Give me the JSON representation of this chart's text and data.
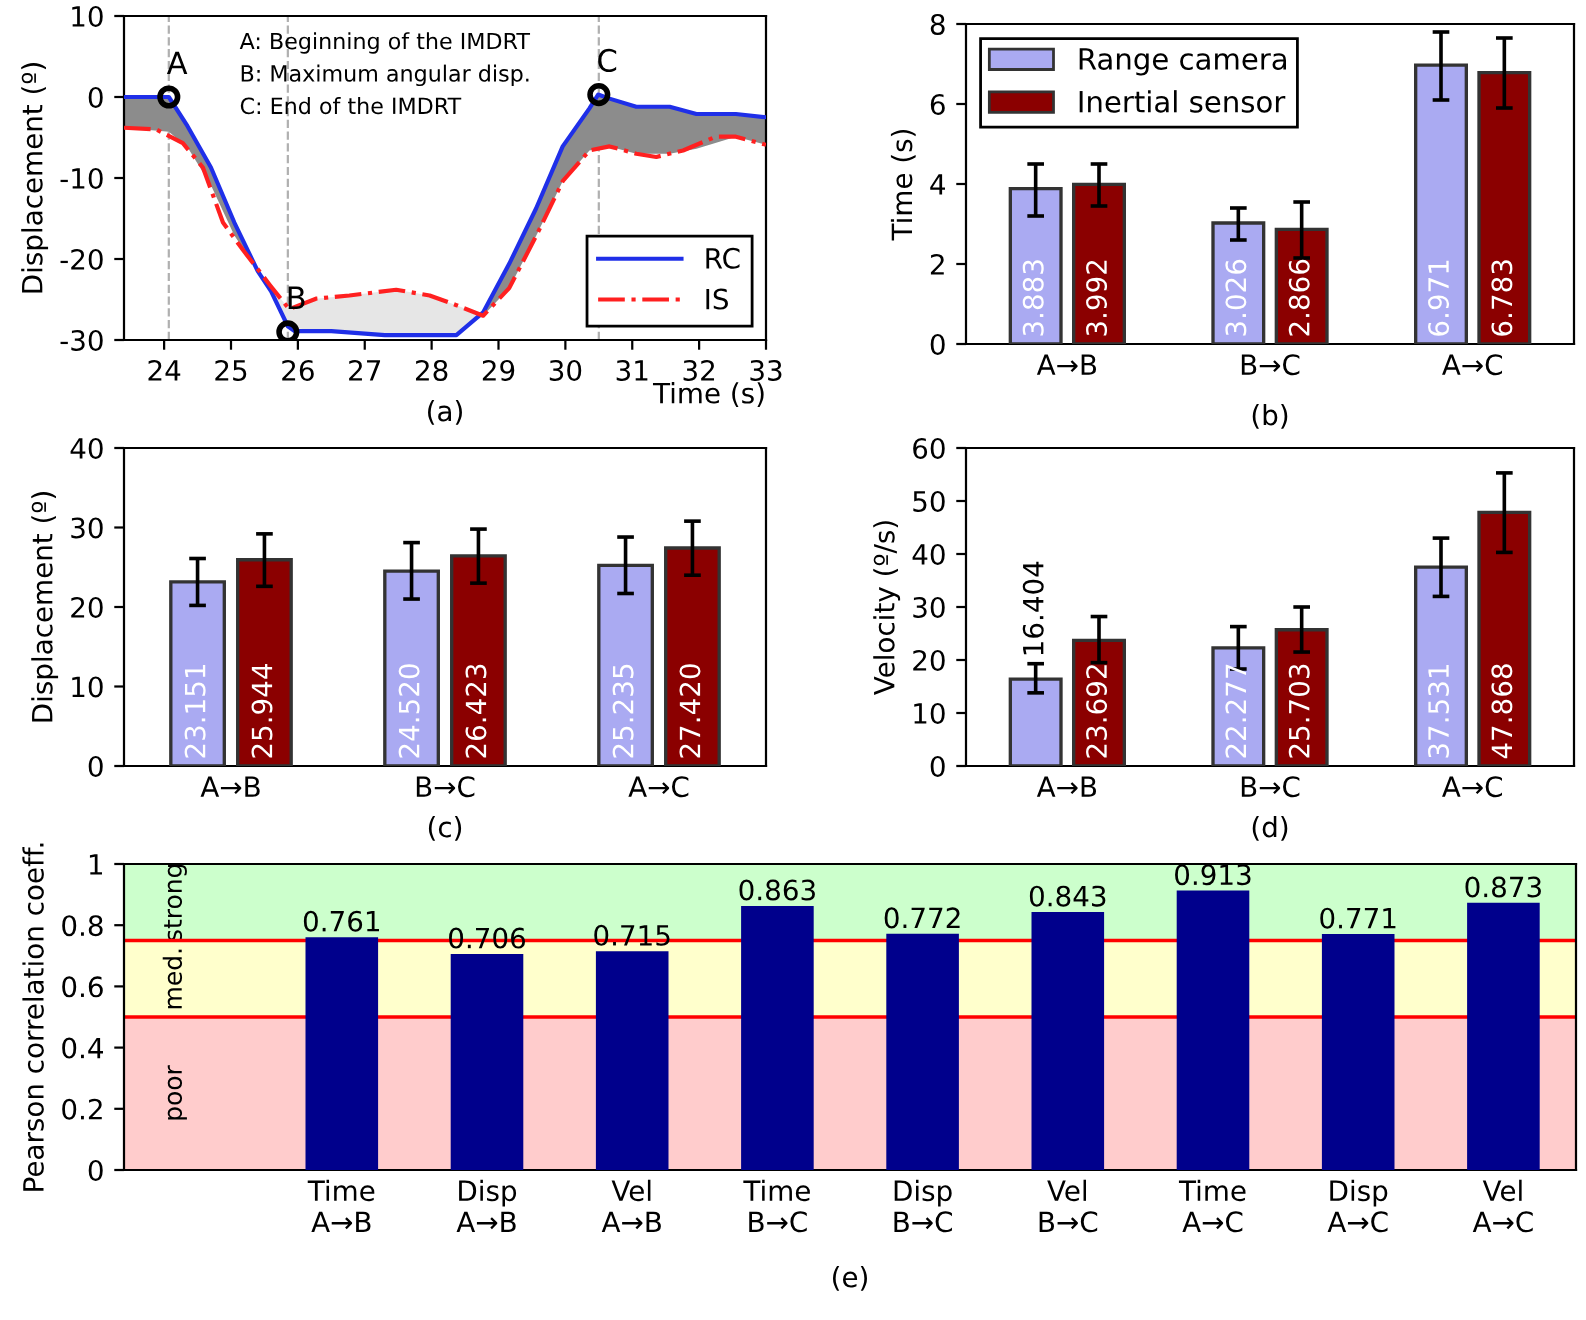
{
  "chart_data": [
    {
      "type": "line",
      "title": "(a)",
      "xlabel": "Time (s)",
      "ylabel": "Displacement (º)",
      "xlim": [
        23.4,
        33
      ],
      "xticks": [
        24,
        25,
        26,
        27,
        28,
        29,
        30,
        31,
        32,
        33
      ],
      "ylim": [
        -30,
        10
      ],
      "yticks": [
        -30,
        -20,
        -10,
        0,
        10
      ],
      "legend": "bottom right",
      "grid": false,
      "series": [
        {
          "name": "RC",
          "color": "#1f2fe8",
          "line_style": "solid",
          "x": [
            23.4,
            24.07,
            24.35,
            24.7,
            25.05,
            25.4,
            25.6,
            25.85,
            25.95,
            26.5,
            27.3,
            28.0,
            28.37,
            28.77,
            29.16,
            29.56,
            29.96,
            30.36,
            30.49,
            30.66,
            31.06,
            31.56,
            31.96,
            32.55,
            33
          ],
          "values": [
            0,
            0,
            -3.6,
            -8.7,
            -15.5,
            -21.5,
            -24,
            -28.3,
            -28.9,
            -28.9,
            -29.4,
            -29.4,
            -29.4,
            -26.6,
            -20.6,
            -13.8,
            -6.1,
            -1.4,
            0.3,
            -0.2,
            -1.2,
            -1.2,
            -2.1,
            -2.1,
            -2.5
          ],
          "lower": [
            -3.8,
            -4.3,
            -6.2,
            -10.9,
            -17.1,
            -21.4,
            null,
            null,
            null,
            null,
            null,
            null,
            null,
            -27,
            -23.6,
            -17.2,
            -10.4,
            -6.6,
            -6.4,
            -6.1,
            -7,
            -7,
            -6.4,
            -4.9,
            -5.9
          ],
          "upper": [
            0,
            0,
            -3.6,
            -8.7,
            -15.5,
            -21.4,
            null,
            null,
            null,
            null,
            null,
            null,
            null,
            -26.6,
            -20.6,
            -13.8,
            -6.1,
            -1.4,
            0.3,
            -0.2,
            -1.2,
            -1.2,
            -2.1,
            -2.1,
            -2.5
          ]
        },
        {
          "name": "IS",
          "color": "#ff2020",
          "line_style": "dashed",
          "x": [
            23.4,
            23.88,
            24.28,
            24.58,
            24.88,
            25.18,
            25.58,
            25.87,
            26.27,
            26.77,
            27.47,
            27.97,
            28.37,
            28.77,
            29.16,
            29.56,
            29.96,
            30.36,
            30.66,
            31.06,
            31.36,
            31.76,
            32.25,
            32.55,
            33
          ],
          "values": [
            -3.8,
            -4,
            -5.7,
            -8.7,
            -15.5,
            -18.9,
            -23.2,
            -26.2,
            -24.9,
            -24.5,
            -23.8,
            -24.5,
            -25.7,
            -27,
            -23.6,
            -17.2,
            -10.4,
            -6.6,
            -6.1,
            -7,
            -7.4,
            -6.6,
            -4.9,
            -4.9,
            -5.9
          ],
          "lower": [
            null,
            null,
            null,
            null,
            null,
            null,
            -23.8,
            -28.4,
            -28.9,
            -29,
            -29.4,
            -29.4,
            -29.4,
            -27,
            null,
            null,
            null,
            null,
            null,
            null,
            null,
            null,
            null,
            null,
            null
          ],
          "upper": [
            null,
            null,
            null,
            null,
            null,
            null,
            -23.2,
            -26.2,
            -24.9,
            -24.5,
            -23.8,
            -24.5,
            -25.7,
            -27,
            null,
            null,
            null,
            null,
            null,
            null,
            null,
            null,
            null,
            null,
            null
          ]
        },
        {
          "type": "scatter",
          "marker": "circle",
          "color": "#000000",
          "x": [
            24.07,
            25.85,
            30.5
          ],
          "values": [
            0,
            -29,
            0.3
          ]
        }
      ],
      "ref_lines": [
        {
          "axis": "x",
          "value": 24.07,
          "color": "#b0b0b0",
          "line_style": "dashed"
        },
        {
          "axis": "x",
          "value": 25.85,
          "color": "#b0b0b0",
          "line_style": "dashed"
        },
        {
          "axis": "x",
          "value": 30.5,
          "color": "#b0b0b0",
          "line_style": "dashed"
        }
      ],
      "annotations": [
        {
          "text": "A",
          "x": 24.07,
          "y": 0
        },
        {
          "text": "B",
          "x": 25.85,
          "y": -29
        },
        {
          "text": "C",
          "x": 30.5,
          "y": 0.3
        },
        "A: Beginning of the IMDRT",
        "B: Maximum angular disp.",
        "C: End of the IMDRT"
      ]
    },
    {
      "type": "bar",
      "title": "(b)",
      "ylabel": "Time (s)",
      "categories": [
        "A→B",
        "B→C",
        "A→C"
      ],
      "ylim": [
        0,
        8
      ],
      "yticks": [
        0,
        2,
        4,
        6,
        8
      ],
      "legend": "top left",
      "series": [
        {
          "name": "Range camera",
          "color": "#aaaaf2",
          "values": [
            3.883,
            3.026,
            6.971
          ],
          "value_labels": [
            "3.883",
            "3.026",
            "6.971"
          ],
          "errors": [
            [
              3.2,
              4.5
            ],
            [
              2.6,
              3.4
            ],
            [
              6.1,
              7.8
            ]
          ]
        },
        {
          "name": "Inertial sensor",
          "color": "#8b0000",
          "values": [
            3.992,
            2.866,
            6.783
          ],
          "value_labels": [
            "3.992",
            "2.866",
            "6.783"
          ],
          "errors": [
            [
              3.45,
              4.5
            ],
            [
              2.15,
              3.55
            ],
            [
              5.9,
              7.65
            ]
          ]
        }
      ]
    },
    {
      "type": "bar",
      "title": "(c)",
      "ylabel": "Displacement (º)",
      "categories": [
        "A→B",
        "B→C",
        "A→C"
      ],
      "ylim": [
        0,
        40
      ],
      "yticks": [
        0,
        10,
        20,
        30,
        40
      ],
      "series": [
        {
          "color": "#aaaaf2",
          "values": [
            23.151,
            24.52,
            25.235
          ],
          "value_labels": [
            "23.151",
            "24.520",
            "25.235"
          ],
          "errors": [
            [
              20.2,
              26.1
            ],
            [
              21,
              28.1
            ],
            [
              21.7,
              28.8
            ]
          ]
        },
        {
          "color": "#8b0000",
          "values": [
            25.944,
            26.423,
            27.42
          ],
          "value_labels": [
            "25.944",
            "26.423",
            "27.420"
          ],
          "errors": [
            [
              22.6,
              29.2
            ],
            [
              23,
              29.8
            ],
            [
              24,
              30.8
            ]
          ]
        }
      ]
    },
    {
      "type": "bar",
      "title": "(d)",
      "ylabel": "Velocity (º/s)",
      "categories": [
        "A→B",
        "B→C",
        "A→C"
      ],
      "ylim": [
        0,
        60
      ],
      "yticks": [
        0,
        10,
        20,
        30,
        40,
        50,
        60
      ],
      "series": [
        {
          "color": "#aaaaf2",
          "values": [
            16.404,
            22.277,
            37.531
          ],
          "value_labels": [
            "16.404",
            "22.277",
            "37.531"
          ],
          "errors": [
            [
              13.8,
              19.3
            ],
            [
              18.3,
              26.3
            ],
            [
              32,
              43
            ]
          ]
        },
        {
          "color": "#8b0000",
          "values": [
            23.692,
            25.703,
            47.868
          ],
          "value_labels": [
            "23.692",
            "25.703",
            "47.868"
          ],
          "errors": [
            [
              19.5,
              28.2
            ],
            [
              21.5,
              30
            ],
            [
              40.3,
              55.3
            ]
          ]
        }
      ]
    },
    {
      "type": "bar",
      "title": "(e)",
      "ylabel": "Pearson correlation coeff.",
      "categories": [
        "Time\nA→B",
        "Disp\nA→B",
        "Vel\nA→B",
        "Time\nB→C",
        "Disp\nB→C",
        "Vel\nB→C",
        "Time\nA→C",
        "Disp\nA→C",
        "Vel\nA→C"
      ],
      "ylim": [
        0,
        1
      ],
      "yticks": [
        0,
        0.2,
        0.4,
        0.6,
        0.8,
        1
      ],
      "series": [
        {
          "color": "#00008c",
          "values": [
            0.761,
            0.706,
            0.715,
            0.863,
            0.772,
            0.843,
            0.913,
            0.771,
            0.873
          ],
          "value_labels": [
            "0.761",
            "0.706",
            "0.715",
            "0.863",
            "0.772",
            "0.843",
            "0.913",
            "0.771",
            "0.873"
          ]
        }
      ],
      "bands": [
        {
          "axis": "y",
          "from": 0,
          "to": 0.5,
          "label": "poor",
          "color": "#ffcccc"
        },
        {
          "axis": "y",
          "from": 0.5,
          "to": 0.75,
          "label": "med.",
          "color": "#ffffcc"
        },
        {
          "axis": "y",
          "from": 0.75,
          "to": 1,
          "label": "strong",
          "color": "#ccffcc"
        }
      ],
      "ref_lines": [
        {
          "axis": "y",
          "value": 0.5,
          "color": "#ff0000"
        },
        {
          "axis": "y",
          "value": 0.75,
          "color": "#ff0000"
        }
      ]
    }
  ]
}
